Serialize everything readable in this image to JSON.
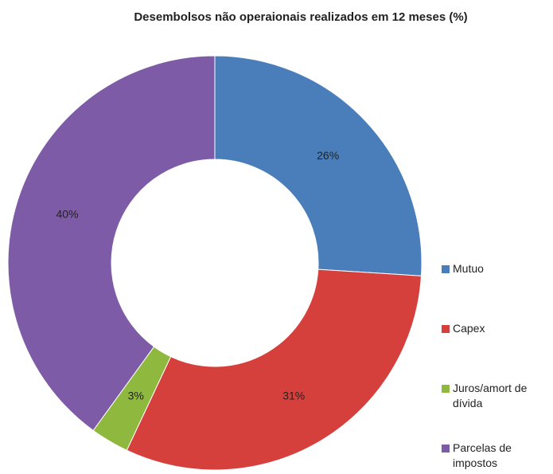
{
  "chart_data": {
    "type": "pie",
    "title": "Desembolsos não operaionais realizados em 12 meses (%)",
    "categories": [
      "Mutuo",
      "Capex",
      "Juros/amort de dívida",
      "Parcelas de impostos"
    ],
    "values": [
      26,
      31,
      3,
      40
    ],
    "value_labels": [
      "26%",
      "31%",
      "3%",
      "40%"
    ],
    "colors": [
      "#4a7ebb",
      "#d6403c",
      "#8fb83e",
      "#7d5ba6"
    ],
    "donut": true,
    "legend": "right"
  }
}
